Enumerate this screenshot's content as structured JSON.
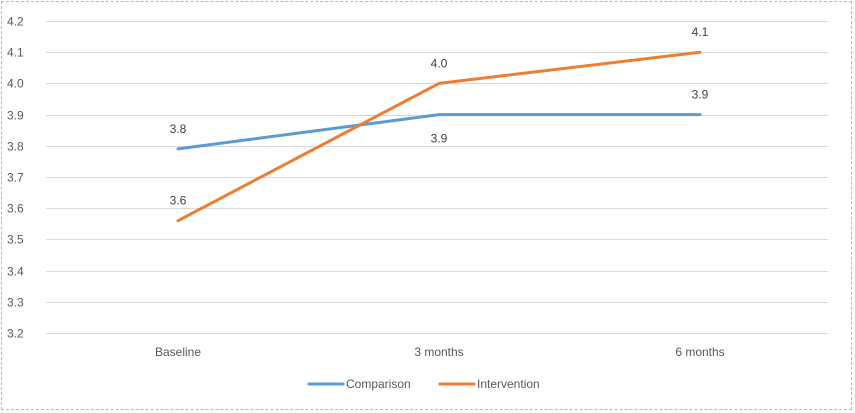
{
  "chart_data": {
    "type": "line",
    "categories": [
      "Baseline",
      "3 months",
      "6 months"
    ],
    "series": [
      {
        "name": "Comparison",
        "values": [
          3.79,
          3.9,
          3.9
        ],
        "labels": [
          "3.8",
          "3.9",
          "3.9"
        ],
        "color": "#5B9BD5"
      },
      {
        "name": "Intervention",
        "values": [
          3.56,
          4.0,
          4.1
        ],
        "labels": [
          "3.6",
          "4.0",
          "4.1"
        ],
        "color": "#ED7D31"
      }
    ],
    "ylim": [
      3.2,
      4.2
    ],
    "yticks": [
      "3.2",
      "3.3",
      "3.4",
      "3.5",
      "3.6",
      "3.7",
      "3.8",
      "3.9",
      "4.0",
      "4.1",
      "4.2"
    ],
    "grid": true,
    "legend_position": "bottom",
    "title": "",
    "xlabel": "",
    "ylabel": ""
  }
}
